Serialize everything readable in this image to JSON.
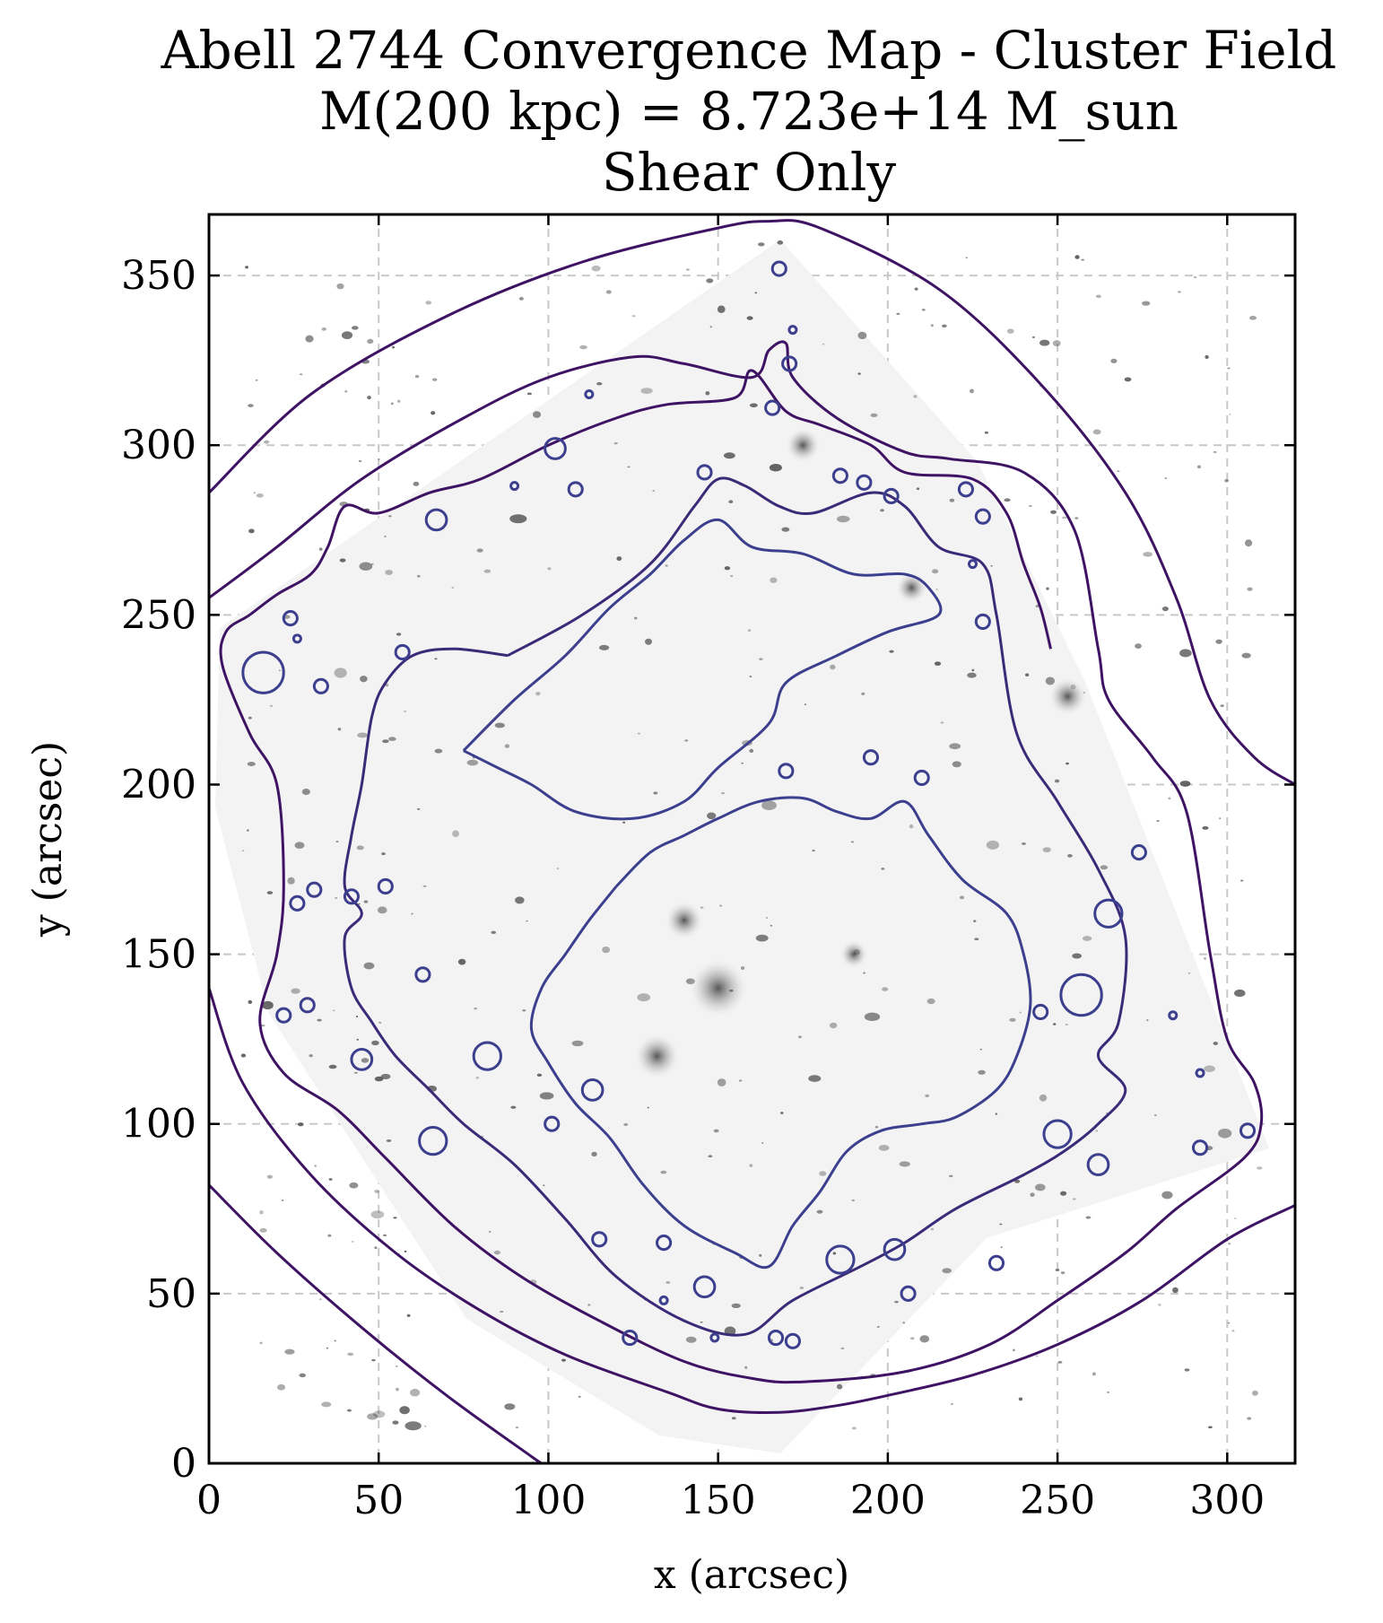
{
  "chart_data": {
    "type": "contour",
    "title_lines": [
      "Abell 2744 Convergence Map - Cluster Field",
      "M(200 kpc) = 8.723e+14 M_sun",
      "Shear Only"
    ],
    "xlabel": "x (arcsec)",
    "ylabel": "y (arcsec)",
    "xlim": [
      0,
      320
    ],
    "ylim": [
      0,
      368
    ],
    "xticks": [
      0,
      50,
      100,
      150,
      200,
      250,
      300
    ],
    "yticks": [
      0,
      50,
      100,
      150,
      200,
      250,
      300,
      350
    ],
    "grid": true,
    "background": "grayscale HST cluster image",
    "colors": {
      "outer_contour": "#3f1363",
      "middle_contour": "#3b2a78",
      "inner_contour": "#3c3f8e",
      "grid": "#c8c8c8"
    },
    "contours": [
      {
        "level": 1,
        "color": "outer_contour",
        "path": [
          [
            0,
            286
          ],
          [
            30,
            315
          ],
          [
            70,
            338
          ],
          [
            110,
            354
          ],
          [
            150,
            364
          ],
          [
            165,
            366
          ],
          [
            180,
            364
          ],
          [
            215,
            346
          ],
          [
            245,
            318
          ],
          [
            270,
            286
          ],
          [
            285,
            255
          ],
          [
            295,
            225
          ],
          [
            308,
            208
          ],
          [
            320,
            200
          ]
        ]
      },
      {
        "level": 2,
        "color": "outer_contour",
        "path": [
          [
            0,
            140
          ],
          [
            10,
            112
          ],
          [
            30,
            85
          ],
          [
            55,
            62
          ],
          [
            80,
            45
          ],
          [
            105,
            32
          ],
          [
            135,
            21
          ],
          [
            150,
            16
          ],
          [
            168,
            15
          ],
          [
            185,
            17
          ],
          [
            200,
            20
          ],
          [
            225,
            26
          ],
          [
            250,
            35
          ],
          [
            275,
            48
          ],
          [
            300,
            66
          ],
          [
            320,
            76
          ]
        ]
      },
      {
        "level": 3,
        "color": "outer_contour",
        "path": [
          [
            0,
            82
          ],
          [
            20,
            62
          ],
          [
            45,
            40
          ],
          [
            70,
            20
          ],
          [
            95,
            2
          ],
          [
            98,
            0
          ]
        ]
      },
      {
        "level": 4,
        "color": "outer_contour",
        "path": [
          [
            0,
            255
          ],
          [
            20,
            270
          ],
          [
            45,
            290
          ],
          [
            75,
            308
          ],
          [
            100,
            320
          ],
          [
            125,
            326
          ],
          [
            140,
            324
          ],
          [
            160,
            320
          ],
          [
            165,
            328
          ],
          [
            170,
            330
          ],
          [
            172,
            320
          ],
          [
            185,
            308
          ],
          [
            205,
            298
          ],
          [
            218,
            296
          ],
          [
            240,
            292
          ],
          [
            255,
            275
          ],
          [
            262,
            240
          ],
          [
            265,
            225
          ],
          [
            278,
            208
          ],
          [
            288,
            192
          ],
          [
            295,
            150
          ],
          [
            300,
            125
          ],
          [
            308,
            112
          ],
          [
            310,
            100
          ],
          [
            305,
            90
          ],
          [
            285,
            75
          ],
          [
            270,
            62
          ],
          [
            250,
            48
          ],
          [
            230,
            35
          ],
          [
            205,
            27
          ],
          [
            175,
            24
          ],
          [
            160,
            25
          ],
          [
            140,
            30
          ],
          [
            115,
            42
          ],
          [
            92,
            55
          ],
          [
            72,
            70
          ],
          [
            52,
            90
          ],
          [
            38,
            104
          ],
          [
            22,
            115
          ],
          [
            15,
            130
          ],
          [
            20,
            150
          ],
          [
            22,
            170
          ],
          [
            20,
            200
          ],
          [
            12,
            215
          ],
          [
            4,
            235
          ],
          [
            5,
            245
          ],
          [
            12,
            250
          ],
          [
            20,
            256
          ],
          [
            30,
            262
          ],
          [
            35,
            270
          ],
          [
            40,
            282
          ],
          [
            50,
            280
          ],
          [
            65,
            286
          ],
          [
            80,
            290
          ],
          [
            100,
            300
          ],
          [
            120,
            308
          ],
          [
            135,
            312
          ],
          [
            155,
            314
          ],
          [
            160,
            322
          ],
          [
            170,
            310
          ],
          [
            180,
            306
          ],
          [
            195,
            300
          ],
          [
            205,
            292
          ],
          [
            225,
            290
          ],
          [
            235,
            280
          ],
          [
            240,
            265
          ],
          [
            245,
            252
          ],
          [
            248,
            240
          ]
        ]
      },
      {
        "level": 5,
        "color": "middle_contour",
        "path": [
          [
            88,
            238
          ],
          [
            110,
            250
          ],
          [
            130,
            265
          ],
          [
            143,
            282
          ],
          [
            150,
            290
          ],
          [
            158,
            288
          ],
          [
            168,
            282
          ],
          [
            178,
            280
          ],
          [
            195,
            286
          ],
          [
            205,
            282
          ],
          [
            215,
            270
          ],
          [
            228,
            265
          ],
          [
            232,
            250
          ],
          [
            238,
            215
          ],
          [
            250,
            195
          ],
          [
            262,
            175
          ],
          [
            270,
            155
          ],
          [
            268,
            130
          ],
          [
            262,
            120
          ],
          [
            270,
            110
          ],
          [
            262,
            100
          ],
          [
            252,
            92
          ],
          [
            240,
            85
          ],
          [
            220,
            75
          ],
          [
            205,
            65
          ],
          [
            192,
            58
          ],
          [
            172,
            48
          ],
          [
            158,
            38
          ],
          [
            140,
            42
          ],
          [
            120,
            55
          ],
          [
            105,
            72
          ],
          [
            90,
            88
          ],
          [
            75,
            100
          ],
          [
            65,
            110
          ],
          [
            55,
            120
          ],
          [
            48,
            130
          ],
          [
            42,
            140
          ],
          [
            40,
            155
          ],
          [
            45,
            162
          ],
          [
            40,
            170
          ],
          [
            42,
            185
          ],
          [
            45,
            200
          ],
          [
            48,
            220
          ],
          [
            52,
            230
          ],
          [
            60,
            238
          ],
          [
            72,
            240
          ],
          [
            88,
            238
          ]
        ]
      },
      {
        "level": 6,
        "color": "inner_contour",
        "path": [
          [
            75,
            210
          ],
          [
            90,
            225
          ],
          [
            105,
            238
          ],
          [
            118,
            252
          ],
          [
            130,
            262
          ],
          [
            140,
            272
          ],
          [
            150,
            278
          ],
          [
            160,
            270
          ],
          [
            175,
            268
          ],
          [
            190,
            262
          ],
          [
            205,
            262
          ],
          [
            212,
            258
          ],
          [
            215,
            250
          ],
          [
            200,
            245
          ],
          [
            185,
            238
          ],
          [
            170,
            230
          ],
          [
            165,
            218
          ],
          [
            150,
            205
          ],
          [
            140,
            195
          ],
          [
            125,
            190
          ],
          [
            108,
            192
          ],
          [
            95,
            200
          ],
          [
            85,
            205
          ],
          [
            75,
            210
          ]
        ]
      },
      {
        "level": 7,
        "color": "inner_contour",
        "path": [
          [
            120,
            170
          ],
          [
            130,
            180
          ],
          [
            140,
            185
          ],
          [
            150,
            190
          ],
          [
            162,
            195
          ],
          [
            175,
            196
          ],
          [
            185,
            192
          ],
          [
            195,
            190
          ],
          [
            205,
            195
          ],
          [
            212,
            185
          ],
          [
            222,
            172
          ],
          [
            235,
            162
          ],
          [
            240,
            150
          ],
          [
            242,
            135
          ],
          [
            238,
            120
          ],
          [
            232,
            110
          ],
          [
            220,
            102
          ],
          [
            210,
            100
          ],
          [
            198,
            98
          ],
          [
            188,
            92
          ],
          [
            180,
            80
          ],
          [
            172,
            70
          ],
          [
            165,
            58
          ],
          [
            155,
            62
          ],
          [
            140,
            70
          ],
          [
            128,
            82
          ],
          [
            118,
            96
          ],
          [
            108,
            106
          ],
          [
            100,
            118
          ],
          [
            95,
            128
          ],
          [
            98,
            140
          ],
          [
            105,
            150
          ],
          [
            112,
            160
          ],
          [
            120,
            170
          ]
        ]
      }
    ],
    "small_rings": [
      [
        168,
        352,
        2
      ],
      [
        172,
        334,
        1
      ],
      [
        171,
        324,
        2
      ],
      [
        166,
        311,
        2
      ],
      [
        112,
        315,
        1
      ],
      [
        102,
        299,
        3
      ],
      [
        108,
        287,
        2
      ],
      [
        90,
        288,
        1
      ],
      [
        67,
        278,
        3
      ],
      [
        24,
        249,
        2
      ],
      [
        26,
        243,
        1
      ],
      [
        16,
        233,
        6
      ],
      [
        33,
        229,
        2
      ],
      [
        57,
        239,
        2
      ],
      [
        146,
        292,
        2
      ],
      [
        186,
        291,
        2
      ],
      [
        193,
        289,
        2
      ],
      [
        201,
        285,
        2
      ],
      [
        223,
        287,
        2
      ],
      [
        228,
        279,
        2
      ],
      [
        225,
        265,
        1
      ],
      [
        228,
        248,
        2
      ],
      [
        170,
        204,
        2
      ],
      [
        195,
        208,
        2
      ],
      [
        210,
        202,
        2
      ],
      [
        31,
        169,
        2
      ],
      [
        26,
        165,
        2
      ],
      [
        42,
        167,
        2
      ],
      [
        52,
        170,
        2
      ],
      [
        63,
        144,
        2
      ],
      [
        22,
        132,
        2
      ],
      [
        29,
        135,
        2
      ],
      [
        45,
        119,
        3
      ],
      [
        82,
        120,
        4
      ],
      [
        66,
        95,
        4
      ],
      [
        101,
        100,
        2
      ],
      [
        113,
        110,
        3
      ],
      [
        115,
        66,
        2
      ],
      [
        134,
        65,
        2
      ],
      [
        134,
        48,
        1
      ],
      [
        146,
        52,
        3
      ],
      [
        149,
        37,
        1
      ],
      [
        124,
        37,
        2
      ],
      [
        167,
        37,
        2
      ],
      [
        172,
        36,
        2
      ],
      [
        186,
        60,
        4
      ],
      [
        202,
        63,
        3
      ],
      [
        206,
        50,
        2
      ],
      [
        232,
        59,
        2
      ],
      [
        250,
        97,
        4
      ],
      [
        262,
        88,
        3
      ],
      [
        245,
        133,
        2
      ],
      [
        257,
        138,
        6
      ],
      [
        274,
        180,
        2
      ],
      [
        265,
        162,
        4
      ],
      [
        284,
        132,
        1
      ],
      [
        292,
        115,
        1
      ],
      [
        292,
        93,
        2
      ],
      [
        306,
        98,
        2
      ]
    ]
  }
}
